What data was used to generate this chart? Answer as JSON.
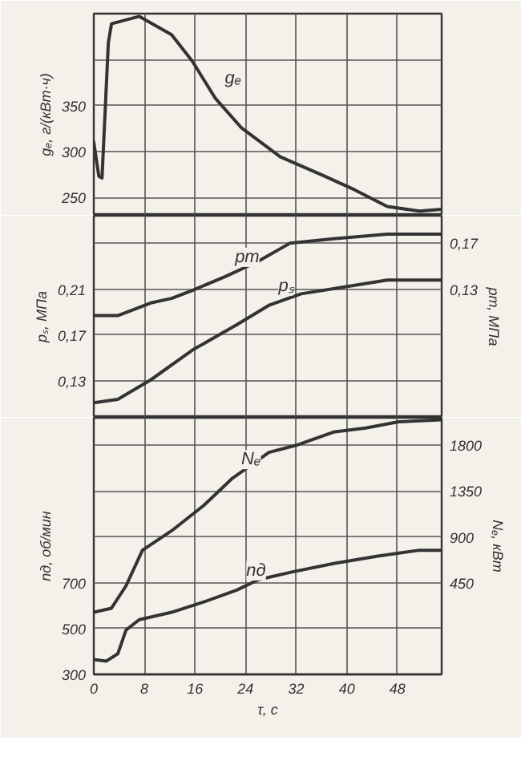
{
  "chart_data": [
    {
      "type": "line",
      "xlim": [
        0,
        55
      ],
      "xticks": [
        0,
        8,
        16,
        24,
        32,
        40,
        48
      ],
      "tick_labels": "y",
      "ylabel": "gₑ, г/(кВт·ч)",
      "ylim": [
        230,
        450
      ],
      "yticks": [
        250,
        300,
        350,
        {
          "value": 400,
          "label": null
        }
      ],
      "grid": true,
      "line_style": "solid",
      "series": [
        {
          "name": "gₑ",
          "color": "#333333",
          "x": [
            0,
            0.8,
            1.3,
            2.3,
            2.8,
            7.2,
            12.3,
            15.6,
            19.2,
            23.3,
            29.5,
            36.2,
            41.3,
            46.4,
            51.5,
            55
          ],
          "values": [
            310,
            273,
            271,
            418,
            439,
            447,
            427,
            398,
            358,
            326,
            294,
            274,
            258,
            240,
            235,
            237
          ]
        }
      ]
    },
    {
      "type": "line",
      "xlim": [
        0,
        55
      ],
      "xticks": [
        0,
        8,
        16,
        24,
        32,
        40,
        48
      ],
      "tick_labels": "y",
      "ylabel": "pₛ, МПа",
      "ylim": [
        0.098,
        0.274
      ],
      "yticks": [
        {
          "value": 0.13,
          "label": "0,13"
        },
        {
          "value": 0.17,
          "label": "0,17"
        },
        {
          "value": 0.21,
          "label": "0,21"
        },
        {
          "value": 0.25,
          "label": null
        }
      ],
      "y2label": "pт, МПа",
      "y2lim": [
        0.018,
        0.194
      ],
      "y2ticks": [
        {
          "value": 0.13,
          "label": "0,13"
        },
        {
          "value": 0.17,
          "label": "0,17"
        }
      ],
      "grid": true,
      "line_style": "solid",
      "series": [
        {
          "name": "pт",
          "color": "#333333",
          "axis": "y2",
          "x": [
            0,
            3.8,
            9,
            12.3,
            15.6,
            20.8,
            25.9,
            31,
            37.9,
            46.4,
            55
          ],
          "values": [
            0.107,
            0.107,
            0.118,
            0.122,
            0.129,
            0.141,
            0.154,
            0.17,
            0.174,
            0.178,
            0.178
          ]
        },
        {
          "name": "pₛ",
          "color": "#333333",
          "x": [
            0,
            3.8,
            9,
            15.6,
            22.6,
            27.7,
            32.8,
            39.7,
            46.4,
            55
          ],
          "values": [
            0.111,
            0.114,
            0.131,
            0.157,
            0.179,
            0.196,
            0.206,
            0.212,
            0.218,
            0.218
          ]
        }
      ]
    },
    {
      "type": "line",
      "xlabel": "τ, с",
      "xlim": [
        0,
        55
      ],
      "xticks": [
        0,
        8,
        16,
        24,
        32,
        40,
        48
      ],
      "ylabel": "nд, об/мин",
      "ylim": [
        300,
        1420
      ],
      "yticks": [
        300,
        500,
        700,
        {
          "value": 900,
          "label": null
        },
        {
          "value": 1100,
          "label": null
        },
        {
          "value": 1300,
          "label": null
        }
      ],
      "y2label": "Nₑ, кВт",
      "y2lim": [
        -450,
        2070
      ],
      "y2ticks": [
        450,
        900,
        1350,
        1800
      ],
      "grid": true,
      "line_style": "solid",
      "series": [
        {
          "name": "Nₑ",
          "color": "#333333",
          "axis": "y2",
          "x": [
            0,
            2.8,
            5.1,
            7.7,
            12.3,
            17.4,
            21.8,
            27.7,
            32,
            37.9,
            43,
            48.2,
            55
          ],
          "values": [
            160,
            200,
            420,
            770,
            960,
            1210,
            1470,
            1730,
            1800,
            1930,
            1970,
            2030,
            2050
          ]
        },
        {
          "name": "nд",
          "color": "#333333",
          "x": [
            0,
            2,
            3.8,
            5.1,
            7.2,
            12.3,
            17.4,
            22.6,
            26,
            31,
            37.9,
            44.9,
            51.5,
            55
          ],
          "values": [
            365,
            358,
            390,
            494,
            539,
            571,
            616,
            668,
            713,
            745,
            784,
            816,
            842,
            842
          ]
        }
      ]
    }
  ]
}
